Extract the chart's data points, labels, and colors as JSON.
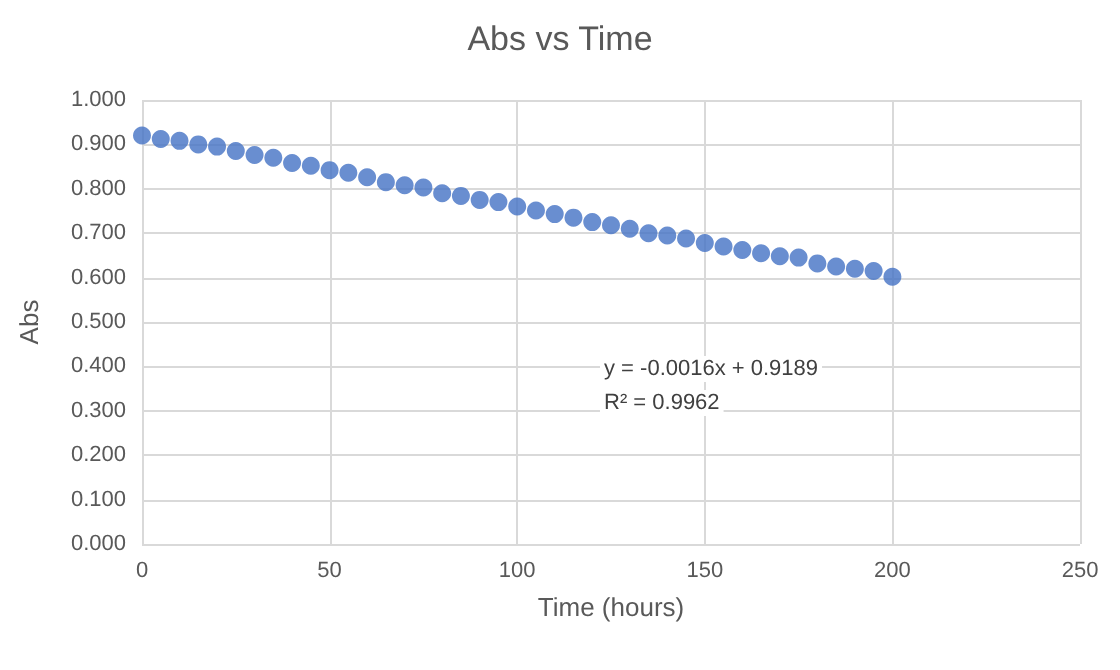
{
  "chart_data": {
    "type": "scatter",
    "title": "Abs vs Time",
    "xlabel": "Time (hours)",
    "ylabel": "Abs",
    "annotations": [
      "y = -0.0016x + 0.9189",
      "R² = 0.9962"
    ],
    "x": [
      0,
      5,
      10,
      15,
      20,
      25,
      30,
      35,
      40,
      45,
      50,
      55,
      60,
      65,
      70,
      75,
      80,
      85,
      90,
      95,
      100,
      105,
      110,
      115,
      120,
      125,
      130,
      135,
      140,
      145,
      150,
      155,
      160,
      165,
      170,
      175,
      180,
      185,
      190,
      195,
      200
    ],
    "series": [
      {
        "color": "#4472c4",
        "values": [
          0.92,
          0.912,
          0.908,
          0.9,
          0.895,
          0.885,
          0.876,
          0.87,
          0.858,
          0.852,
          0.842,
          0.836,
          0.826,
          0.815,
          0.808,
          0.803,
          0.79,
          0.784,
          0.775,
          0.77,
          0.76,
          0.751,
          0.743,
          0.735,
          0.725,
          0.718,
          0.71,
          0.7,
          0.695,
          0.688,
          0.678,
          0.67,
          0.662,
          0.655,
          0.648,
          0.645,
          0.632,
          0.625,
          0.62,
          0.615,
          0.602
        ]
      }
    ],
    "xlim": [
      0,
      250
    ],
    "xticks": [
      0,
      50,
      100,
      150,
      200,
      250
    ],
    "ylim": [
      0,
      1
    ],
    "yticks": [
      {
        "value": 0,
        "label": "0.000"
      },
      {
        "value": 0.1,
        "label": "0.100"
      },
      {
        "value": 0.2,
        "label": "0.200"
      },
      {
        "value": 0.3,
        "label": "0.300"
      },
      {
        "value": 0.4,
        "label": "0.400"
      },
      {
        "value": 0.5,
        "label": "0.500"
      },
      {
        "value": 0.6,
        "label": "0.600"
      },
      {
        "value": 0.7,
        "label": "0.700"
      },
      {
        "value": 0.8,
        "label": "0.800"
      },
      {
        "value": 0.9,
        "label": "0.900"
      },
      {
        "value": 1,
        "label": "1.000"
      }
    ],
    "grid": true,
    "marker": "circle"
  }
}
